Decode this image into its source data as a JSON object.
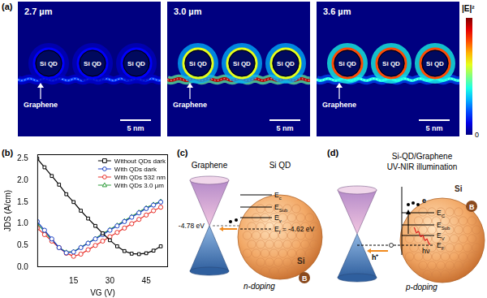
{
  "panel_a": {
    "label": "(a)",
    "maps": [
      {
        "wavelength": "2.7 µm",
        "rim_peak": 0.12,
        "graphene_peak": 0.18
      },
      {
        "wavelength": "3.0 µm",
        "rim_peak": 0.6,
        "graphene_peak": 0.95
      },
      {
        "wavelength": "3.6 µm",
        "rim_peak": 0.8,
        "graphene_peak": 0.4
      }
    ],
    "qds": [
      "Si QD",
      "Si QD",
      "Si QD"
    ],
    "graphene_label": "Graphene",
    "scale_bar": "5 nm",
    "colorbar": {
      "label": "|E|²",
      "range": [
        0,
        1
      ],
      "ticks": [
        0
      ]
    }
  },
  "chart_data": {
    "label": "(b)",
    "type": "line",
    "x_label": "VG (V)",
    "y_label": "JDS (A/cm)",
    "x": [
      0,
      3,
      6,
      9,
      12,
      15,
      18,
      21,
      24,
      27,
      30,
      33,
      36,
      39,
      42,
      45,
      48,
      51
    ],
    "xlim": [
      0,
      54
    ],
    "xticks": [
      15,
      30,
      45
    ],
    "ylim": [
      0,
      2.6
    ],
    "yticks": [
      {
        "value": 0,
        "label": "0.0"
      },
      0.5,
      {
        "value": 1,
        "label": "1.0"
      },
      1.5,
      {
        "value": 2,
        "label": "2.0"
      },
      2.5
    ],
    "grid": false,
    "legend": "upper right",
    "series": [
      {
        "name": "Without QDs dark",
        "color": "#000000",
        "marker": "square",
        "line_style": "solid",
        "values": [
          2.5,
          2.3,
          2.1,
          1.9,
          1.68,
          1.5,
          1.3,
          1.12,
          0.95,
          0.78,
          0.62,
          0.48,
          0.37,
          0.31,
          0.3,
          0.32,
          0.38,
          0.48
        ]
      },
      {
        "name": "With QDs dark",
        "color": "#1a3fc4",
        "marker": "circle",
        "line_style": "solid",
        "values": [
          1.05,
          0.85,
          0.65,
          0.45,
          0.33,
          0.35,
          0.45,
          0.55,
          0.65,
          0.75,
          0.85,
          0.95,
          1.05,
          1.15,
          1.25,
          1.35,
          1.43,
          1.5
        ]
      },
      {
        "name": "With QDs 532 nm",
        "color": "#e8302a",
        "marker": "circle",
        "line_style": "solid",
        "values": [
          0.9,
          0.75,
          0.6,
          0.45,
          0.32,
          0.25,
          0.3,
          0.4,
          0.5,
          0.6,
          0.7,
          0.8,
          0.9,
          1.0,
          1.1,
          1.2,
          1.3,
          1.38
        ]
      },
      {
        "name": "With QDs 3.0 µm",
        "color": "#2e9b3a",
        "marker": "triangle",
        "line_style": "solid",
        "values": [
          1.0,
          0.82,
          0.62,
          0.45,
          0.35,
          0.36,
          0.46,
          0.56,
          0.66,
          0.77,
          0.87,
          0.97,
          1.07,
          1.17,
          1.27,
          1.37,
          1.45,
          1.52
        ]
      }
    ]
  },
  "panel_c": {
    "label": "(c)",
    "left_title": "Graphene",
    "right_title": "Si QD",
    "dirac_point": "-4.78 eV",
    "levels": [
      {
        "base": "E",
        "sub": "c"
      },
      {
        "base": "E",
        "sub": "Sub"
      },
      {
        "base": "E",
        "sub": "v"
      },
      {
        "base": "E",
        "sub": "f",
        "rest": " = -4.62 eV"
      }
    ],
    "atoms": [
      "Si",
      "B"
    ],
    "caption": "n-doping"
  },
  "panel_d": {
    "label": "(d)",
    "title": [
      "Si-QD/Graphene",
      "UV-NIR illumination"
    ],
    "levels": [
      {
        "base": "E",
        "sub": "C"
      },
      {
        "base": "E",
        "sub": "Sub"
      },
      {
        "base": "E",
        "sub": "V"
      },
      {
        "base": "E",
        "sub": "F"
      }
    ],
    "atoms": [
      "Si",
      "B"
    ],
    "carriers": {
      "electron": "e",
      "photon": "hν",
      "hole": "h⁺"
    },
    "caption": "p-doping"
  }
}
